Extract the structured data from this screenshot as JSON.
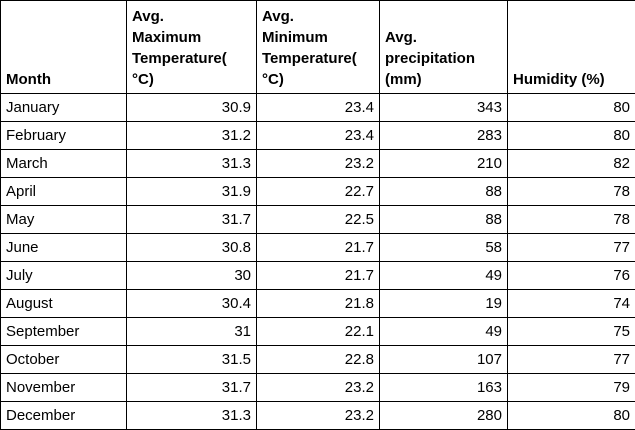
{
  "chart_data": {
    "type": "table",
    "columns": [
      "Month",
      "Avg.\nMaximum\nTemperature(\n°C)",
      "Avg.\nMinimum\nTemperature(\n°C)",
      "Avg.\nprecipitation\n(mm)",
      "Humidity (%)"
    ],
    "rows": [
      [
        "January",
        "30.9",
        "23.4",
        "343",
        "80"
      ],
      [
        "February",
        "31.2",
        "23.4",
        "283",
        "80"
      ],
      [
        "March",
        "31.3",
        "23.2",
        "210",
        "82"
      ],
      [
        "April",
        "31.9",
        "22.7",
        "88",
        "78"
      ],
      [
        "May",
        "31.7",
        "22.5",
        "88",
        "78"
      ],
      [
        "June",
        "30.8",
        "21.7",
        "58",
        "77"
      ],
      [
        "July",
        "30",
        "21.7",
        "49",
        "76"
      ],
      [
        "August",
        "30.4",
        "21.8",
        "19",
        "74"
      ],
      [
        "September",
        "31",
        "22.1",
        "49",
        "75"
      ],
      [
        "October",
        "31.5",
        "22.8",
        "107",
        "77"
      ],
      [
        "November",
        "31.7",
        "23.2",
        "163",
        "79"
      ],
      [
        "December",
        "31.3",
        "23.2",
        "280",
        "80"
      ]
    ],
    "layout": {
      "grid": "all-borders",
      "header_align": "left-bottom",
      "numeric_align": "right"
    }
  },
  "colors": {
    "border": "#000000",
    "text": "#000000",
    "background": "#ffffff"
  }
}
